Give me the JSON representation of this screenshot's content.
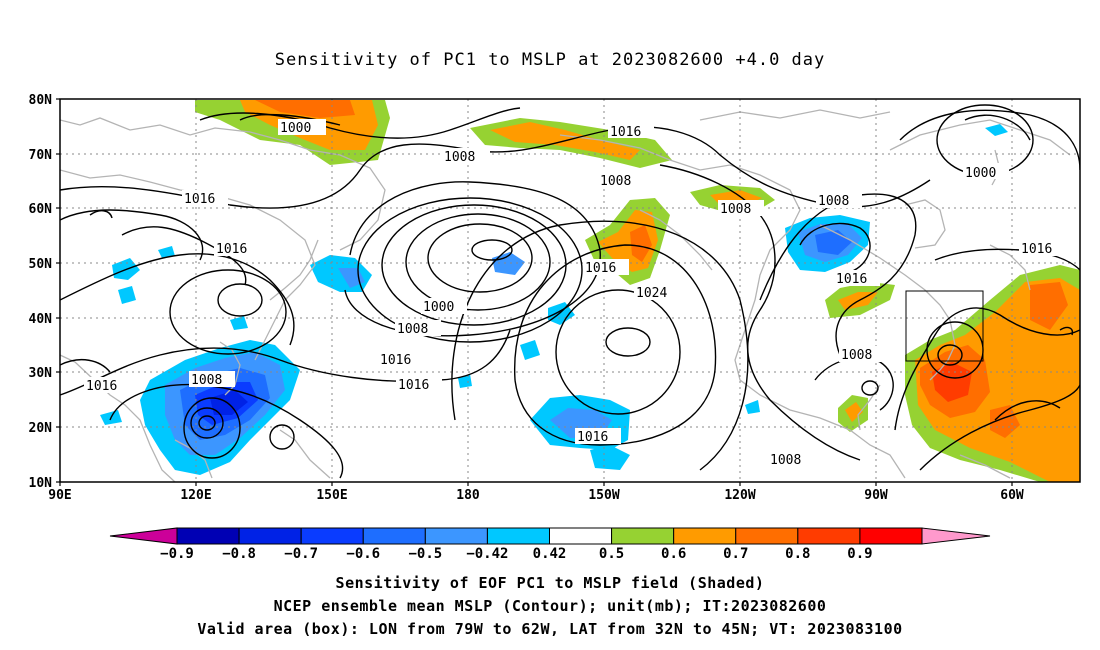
{
  "title": "Sensitivity of PC1 to MSLP at 2023082600 +4.0 day",
  "map": {
    "lat_ticks": [
      "80N",
      "70N",
      "60N",
      "50N",
      "40N",
      "30N",
      "20N",
      "10N"
    ],
    "lon_ticks": [
      "90E",
      "120E",
      "150E",
      "180",
      "150W",
      "120W",
      "90W",
      "60W"
    ],
    "valid_box_icon": "rectangle-outline",
    "contour_labels": [
      {
        "id": "c-1000-a",
        "text": "1000"
      },
      {
        "id": "c-1008-a",
        "text": "1008"
      },
      {
        "id": "c-1016-a",
        "text": "1016"
      },
      {
        "id": "c-1008-b",
        "text": "1008"
      },
      {
        "id": "c-1016-b",
        "text": "1016"
      },
      {
        "id": "c-1016-c",
        "text": "1016"
      },
      {
        "id": "c-1000-b",
        "text": "1000"
      },
      {
        "id": "c-1008-c",
        "text": "1008"
      },
      {
        "id": "c-1016-d",
        "text": "1016"
      },
      {
        "id": "c-1016-e",
        "text": "1016"
      },
      {
        "id": "c-1024",
        "text": "1024"
      },
      {
        "id": "c-1008-d",
        "text": "1008"
      },
      {
        "id": "c-1008-e",
        "text": "1008"
      },
      {
        "id": "c-1016-f",
        "text": "1016"
      },
      {
        "id": "c-1000-c",
        "text": "1000"
      },
      {
        "id": "c-1016-g",
        "text": "1016"
      },
      {
        "id": "c-1008-f",
        "text": "1008"
      },
      {
        "id": "c-1016-h",
        "text": "1016"
      },
      {
        "id": "c-1016-i",
        "text": "1016"
      },
      {
        "id": "c-1008-g",
        "text": "1008"
      },
      {
        "id": "c-1008-h",
        "text": "1008"
      },
      {
        "id": "c-1016-j",
        "text": "1016"
      }
    ]
  },
  "colorbar": {
    "labels": [
      "−0.9",
      "−0.8",
      "−0.7",
      "−0.6",
      "−0.5",
      "−0.42",
      "0.42",
      "0.5",
      "0.6",
      "0.7",
      "0.8",
      "0.9"
    ],
    "colors": [
      "#cc0099",
      "#0000b4",
      "#0022e6",
      "#0a3cff",
      "#1e6eff",
      "#3c96ff",
      "#00c8ff",
      "#ffffff",
      "#96d232",
      "#ff9b00",
      "#ff6e00",
      "#ff3c00",
      "#ff0000",
      "#ff99cc"
    ]
  },
  "colors": {
    "coast": "#b4b4b4",
    "contour": "#000000",
    "grid": "#888888"
  },
  "captions": [
    "Sensitivity of EOF PC1 to MSLP field (Shaded)",
    "NCEP ensemble mean MSLP (Contour); unit(mb); IT:2023082600",
    "Valid area (box): LON from 79W to 62W, LAT from 32N to 45N; VT: 2023083100"
  ]
}
